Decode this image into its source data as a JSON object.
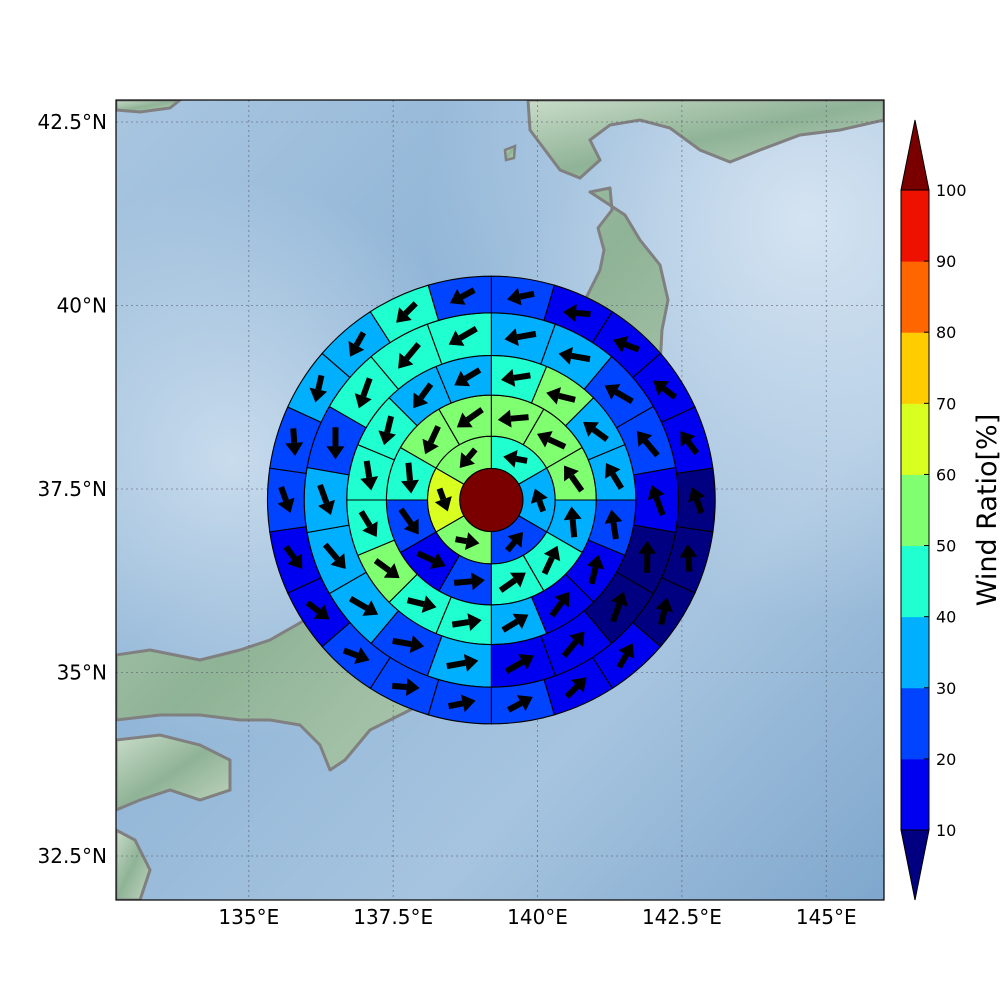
{
  "map": {
    "lon_range": [
      132.7,
      146.0
    ],
    "lat_range": [
      31.9,
      42.8
    ],
    "lon_ticks": [
      "135°E",
      "137.5°E",
      "140°E",
      "142.5°E",
      "145°E"
    ],
    "lon_tick_values": [
      135,
      137.5,
      140,
      142.5,
      145
    ],
    "lat_ticks": [
      "32.5°N",
      "35°N",
      "37.5°N",
      "40°N",
      "42.5°N"
    ],
    "lat_tick_values": [
      32.5,
      35,
      37.5,
      40,
      42.5
    ],
    "center": {
      "lon": 139.2,
      "lat": 37.35
    },
    "gridlines": "dotted",
    "background": "shaded relief ocean and land"
  },
  "colorbar": {
    "label": "Wind Ratio[%]",
    "tick_labels": [
      "10",
      "20",
      "30",
      "40",
      "50",
      "60",
      "70",
      "80",
      "90",
      "100"
    ],
    "levels": [
      10,
      20,
      30,
      40,
      50,
      60,
      70,
      80,
      90,
      100
    ],
    "colors": [
      "#0000f0",
      "#0044ff",
      "#00b0ff",
      "#20ffd0",
      "#80ff70",
      "#d8ff20",
      "#ffcc00",
      "#ff6600",
      "#ee1100"
    ],
    "under_color": "#000080",
    "over_color": "#7a0000",
    "extend": "both"
  },
  "rings": {
    "ring_edges_deg": [
      0.43,
      0.87,
      1.43,
      1.97,
      2.55,
      3.05
    ],
    "hub_color": "#7a0000",
    "sectors_per_ring": [
      6,
      12,
      16,
      18,
      22
    ],
    "ratio_values": [
      [
        45,
        35,
        25,
        55,
        65,
        55
      ],
      [
        55,
        55,
        55,
        35,
        40,
        45,
        25,
        15,
        25,
        45,
        55,
        55
      ],
      [
        45,
        55,
        35,
        35,
        25,
        15,
        15,
        35,
        45,
        45,
        55,
        45,
        45,
        45,
        35,
        35
      ],
      [
        35,
        35,
        25,
        25,
        15,
        5,
        5,
        15,
        15,
        35,
        25,
        35,
        35,
        35,
        25,
        45,
        45,
        45
      ],
      [
        25,
        15,
        15,
        15,
        15,
        5,
        5,
        5,
        15,
        15,
        25,
        25,
        25,
        25,
        15,
        15,
        25,
        25,
        35,
        35,
        45,
        25
      ]
    ]
  }
}
